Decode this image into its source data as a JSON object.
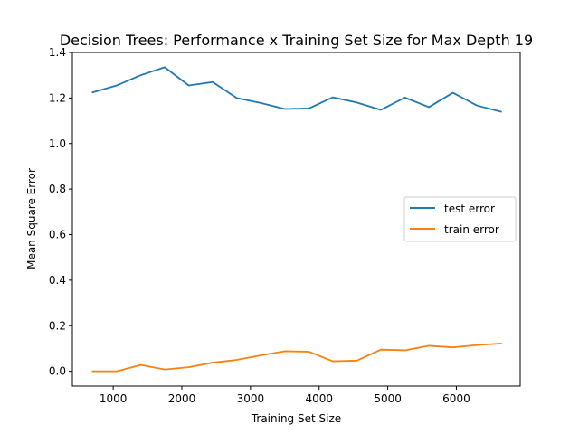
{
  "chart_data": {
    "type": "line",
    "title": "Decision Trees: Performance x Training Set Size for Max Depth 19",
    "xlabel": "Training Set Size",
    "ylabel": "Mean Square Error",
    "xlim": [
      405,
      6930
    ],
    "ylim": [
      -0.065,
      1.4
    ],
    "xticks": [
      1000,
      2000,
      3000,
      4000,
      5000,
      6000
    ],
    "yticks": [
      0.0,
      0.2,
      0.4,
      0.6,
      0.8,
      1.0,
      1.2,
      1.4
    ],
    "xtick_labels": [
      "1000",
      "2000",
      "3000",
      "4000",
      "5000",
      "6000"
    ],
    "ytick_labels": [
      "0.0",
      "0.2",
      "0.4",
      "0.6",
      "0.8",
      "1.0",
      "1.2",
      "1.4"
    ],
    "grid": false,
    "legend_position": "center-right",
    "x": [
      700,
      1050,
      1400,
      1750,
      2100,
      2450,
      2800,
      3150,
      3500,
      3850,
      4200,
      4550,
      4900,
      5250,
      5600,
      5950,
      6300,
      6650
    ],
    "series": [
      {
        "name": "test error",
        "color": "#1f77b4",
        "values": [
          1.225,
          1.255,
          1.3,
          1.335,
          1.255,
          1.27,
          1.2,
          1.178,
          1.152,
          1.154,
          1.203,
          1.18,
          1.148,
          1.202,
          1.16,
          1.223,
          1.167,
          1.14
        ]
      },
      {
        "name": "train error",
        "color": "#ff7f0e",
        "values": [
          0.0,
          0.0,
          0.028,
          0.008,
          0.018,
          0.038,
          0.05,
          0.07,
          0.088,
          0.086,
          0.044,
          0.047,
          0.095,
          0.092,
          0.112,
          0.105,
          0.115,
          0.122
        ]
      }
    ]
  }
}
